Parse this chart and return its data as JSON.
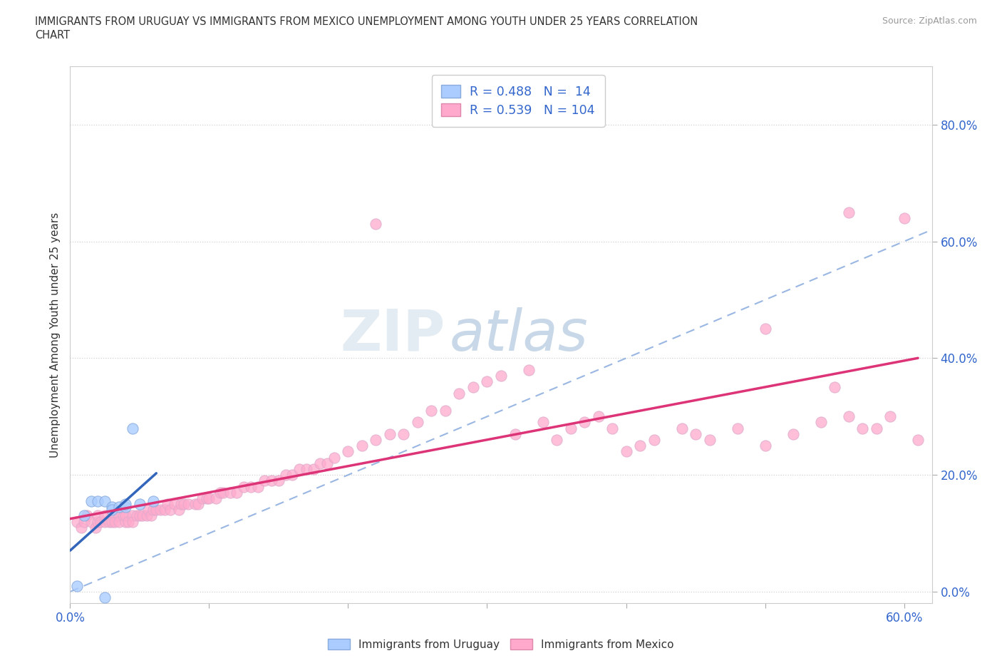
{
  "title_line1": "IMMIGRANTS FROM URUGUAY VS IMMIGRANTS FROM MEXICO UNEMPLOYMENT AMONG YOUTH UNDER 25 YEARS CORRELATION",
  "title_line2": "CHART",
  "source_text": "Source: ZipAtlas.com",
  "ylabel": "Unemployment Among Youth under 25 years",
  "xlabel": "",
  "xlim": [
    0.0,
    0.62
  ],
  "ylim": [
    -0.02,
    0.9
  ],
  "xticks": [
    0.0,
    0.1,
    0.2,
    0.3,
    0.4,
    0.5,
    0.6
  ],
  "yticks": [
    0.0,
    0.2,
    0.4,
    0.6,
    0.8
  ],
  "watermark_zip": "ZIP",
  "watermark_atlas": "atlas",
  "uruguay_color": "#aaccff",
  "mexico_color": "#ffaacc",
  "uruguay_line_color": "#3366bb",
  "mexico_line_color": "#dd3377",
  "diag_line_color": "#88aadd",
  "R_uruguay": 0.488,
  "N_uruguay": 14,
  "R_mexico": 0.539,
  "N_mexico": 104,
  "uruguay_scatter_x": [
    0.005,
    0.01,
    0.015,
    0.02,
    0.025,
    0.03,
    0.03,
    0.035,
    0.04,
    0.04,
    0.045,
    0.05,
    0.06,
    0.025
  ],
  "uruguay_scatter_y": [
    0.01,
    0.13,
    0.155,
    0.155,
    0.155,
    0.145,
    0.14,
    0.145,
    0.145,
    0.15,
    0.28,
    0.15,
    0.155,
    -0.01
  ],
  "mexico_scatter_x": [
    0.005,
    0.008,
    0.01,
    0.012,
    0.015,
    0.018,
    0.02,
    0.02,
    0.022,
    0.025,
    0.025,
    0.028,
    0.03,
    0.03,
    0.032,
    0.035,
    0.035,
    0.038,
    0.04,
    0.04,
    0.042,
    0.045,
    0.045,
    0.048,
    0.05,
    0.052,
    0.055,
    0.056,
    0.058,
    0.06,
    0.062,
    0.065,
    0.068,
    0.07,
    0.072,
    0.075,
    0.078,
    0.08,
    0.082,
    0.085,
    0.09,
    0.092,
    0.095,
    0.098,
    0.1,
    0.105,
    0.108,
    0.11,
    0.115,
    0.12,
    0.125,
    0.13,
    0.135,
    0.14,
    0.145,
    0.15,
    0.155,
    0.16,
    0.165,
    0.17,
    0.175,
    0.18,
    0.185,
    0.19,
    0.2,
    0.21,
    0.22,
    0.23,
    0.24,
    0.25,
    0.26,
    0.27,
    0.28,
    0.29,
    0.3,
    0.31,
    0.32,
    0.33,
    0.34,
    0.35,
    0.36,
    0.37,
    0.38,
    0.39,
    0.4,
    0.41,
    0.42,
    0.44,
    0.45,
    0.46,
    0.48,
    0.5,
    0.52,
    0.54,
    0.56,
    0.57,
    0.58,
    0.59,
    0.6,
    0.61,
    0.5,
    0.55,
    0.22,
    0.56
  ],
  "mexico_scatter_y": [
    0.12,
    0.11,
    0.12,
    0.13,
    0.12,
    0.11,
    0.12,
    0.13,
    0.12,
    0.12,
    0.13,
    0.12,
    0.13,
    0.12,
    0.12,
    0.13,
    0.12,
    0.13,
    0.12,
    0.13,
    0.12,
    0.13,
    0.12,
    0.13,
    0.13,
    0.13,
    0.13,
    0.14,
    0.13,
    0.14,
    0.14,
    0.14,
    0.14,
    0.15,
    0.14,
    0.15,
    0.14,
    0.15,
    0.15,
    0.15,
    0.15,
    0.15,
    0.16,
    0.16,
    0.16,
    0.16,
    0.17,
    0.17,
    0.17,
    0.17,
    0.18,
    0.18,
    0.18,
    0.19,
    0.19,
    0.19,
    0.2,
    0.2,
    0.21,
    0.21,
    0.21,
    0.22,
    0.22,
    0.23,
    0.24,
    0.25,
    0.26,
    0.27,
    0.27,
    0.29,
    0.31,
    0.31,
    0.34,
    0.35,
    0.36,
    0.37,
    0.27,
    0.38,
    0.29,
    0.26,
    0.28,
    0.29,
    0.3,
    0.28,
    0.24,
    0.25,
    0.26,
    0.28,
    0.27,
    0.26,
    0.28,
    0.25,
    0.27,
    0.29,
    0.3,
    0.28,
    0.28,
    0.3,
    0.64,
    0.26,
    0.45,
    0.35,
    0.63,
    0.65
  ],
  "background_color": "#ffffff",
  "grid_color": "#cccccc"
}
